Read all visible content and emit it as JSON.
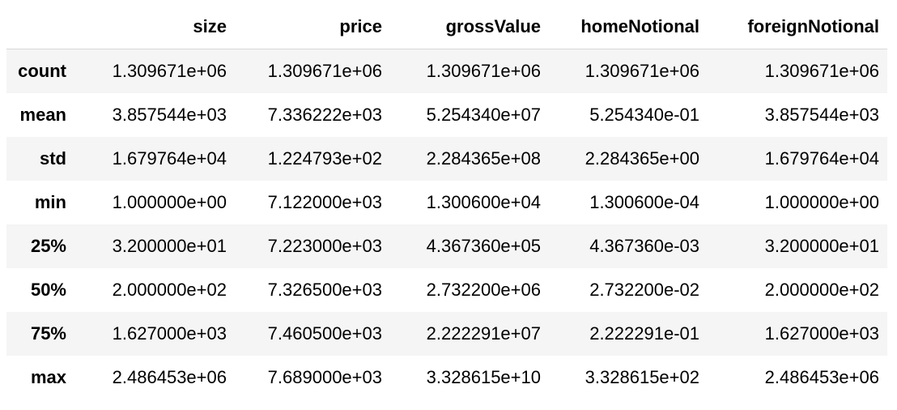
{
  "table": {
    "index_header": "",
    "columns": [
      "size",
      "price",
      "grossValue",
      "homeNotional",
      "foreignNotional"
    ],
    "rows": [
      {
        "label": "count",
        "values": [
          "1.309671e+06",
          "1.309671e+06",
          "1.309671e+06",
          "1.309671e+06",
          "1.309671e+06"
        ]
      },
      {
        "label": "mean",
        "values": [
          "3.857544e+03",
          "7.336222e+03",
          "5.254340e+07",
          "5.254340e-01",
          "3.857544e+03"
        ]
      },
      {
        "label": "std",
        "values": [
          "1.679764e+04",
          "1.224793e+02",
          "2.284365e+08",
          "2.284365e+00",
          "1.679764e+04"
        ]
      },
      {
        "label": "min",
        "values": [
          "1.000000e+00",
          "7.122000e+03",
          "1.300600e+04",
          "1.300600e-04",
          "1.000000e+00"
        ]
      },
      {
        "label": "25%",
        "values": [
          "3.200000e+01",
          "7.223000e+03",
          "4.367360e+05",
          "4.367360e-03",
          "3.200000e+01"
        ]
      },
      {
        "label": "50%",
        "values": [
          "2.000000e+02",
          "7.326500e+03",
          "2.732200e+06",
          "2.732200e-02",
          "2.000000e+02"
        ]
      },
      {
        "label": "75%",
        "values": [
          "1.627000e+03",
          "7.460500e+03",
          "2.222291e+07",
          "2.222291e-01",
          "1.627000e+03"
        ]
      },
      {
        "label": "max",
        "values": [
          "2.486453e+06",
          "7.689000e+03",
          "3.328615e+10",
          "3.328615e+02",
          "2.486453e+06"
        ]
      }
    ]
  }
}
